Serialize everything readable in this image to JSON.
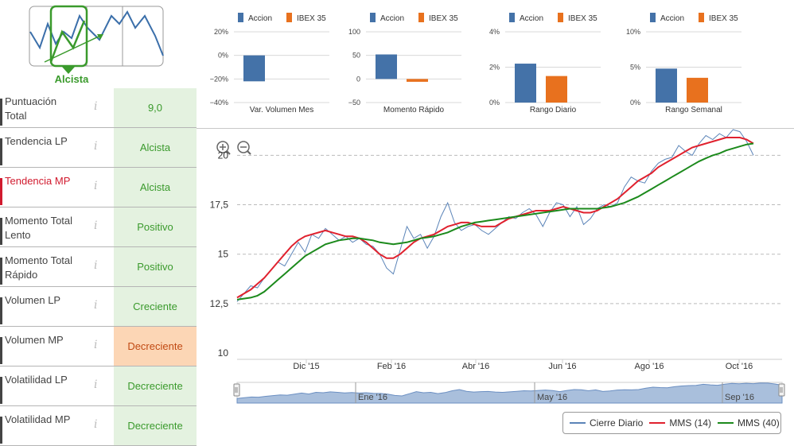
{
  "trend": {
    "label": "Alcista"
  },
  "rows": [
    {
      "label": "Puntuación Total",
      "value": "9,0",
      "tone": "green",
      "active": false
    },
    {
      "label": "Tendencia LP",
      "value": "Alcista",
      "tone": "green",
      "active": false
    },
    {
      "label": "Tendencia MP",
      "value": "Alcista",
      "tone": "green",
      "active": true
    },
    {
      "label": "Momento Total Lento",
      "value": "Positivo",
      "tone": "green",
      "active": false
    },
    {
      "label": "Momento Total Rápido",
      "value": "Positivo",
      "tone": "green",
      "active": false
    },
    {
      "label": "Volumen LP",
      "value": "Creciente",
      "tone": "green",
      "active": false
    },
    {
      "label": "Volumen MP",
      "value": "Decreciente",
      "tone": "orange",
      "active": false
    },
    {
      "label": "Volatilidad LP",
      "value": "Decreciente",
      "tone": "green",
      "active": false
    },
    {
      "label": "Volatilidad MP",
      "value": "Decreciente",
      "tone": "green",
      "active": false
    }
  ],
  "info_glyph": "i",
  "colors": {
    "accion": "#4472a8",
    "ibex": "#e8711e",
    "green_text": "#3a9a2c",
    "red": "#d11a2e",
    "close": "#5b84b8",
    "mms14": "#e0212e",
    "mms40": "#1c8a1c"
  },
  "mini_charts": [
    {
      "type": "bar",
      "legend": [
        "Accion",
        "IBEX 35"
      ],
      "title": "Var. Volumen Mes",
      "yticks": [
        "20%",
        "0%",
        "−20%",
        "−40%"
      ],
      "ylim": [
        -40,
        20
      ],
      "values": [
        -22,
        null
      ]
    },
    {
      "type": "bar",
      "legend": [
        "Accion",
        "IBEX 35"
      ],
      "title": "Momento Rápido",
      "yticks": [
        "100",
        "50",
        "0",
        "−50"
      ],
      "ylim": [
        -50,
        100
      ],
      "values": [
        52,
        -6
      ]
    },
    {
      "type": "bar",
      "legend": [
        "Accion",
        "IBEX 35"
      ],
      "title": "Rango Diario",
      "yticks": [
        "4%",
        "2%",
        "0%"
      ],
      "ylim": [
        0,
        4
      ],
      "values": [
        2.2,
        1.5
      ]
    },
    {
      "type": "bar",
      "legend": [
        "Accion",
        "IBEX 35"
      ],
      "title": "Rango Semanal",
      "yticks": [
        "10%",
        "5%",
        "0%"
      ],
      "ylim": [
        0,
        10
      ],
      "values": [
        4.8,
        3.5
      ]
    }
  ],
  "chart_data": {
    "type": "line",
    "yticks": [
      "20",
      "17,5",
      "15",
      "12,5",
      "10"
    ],
    "ylim": [
      10,
      20.7
    ],
    "xticks": [
      "Dic '15",
      "Feb '16",
      "Abr '16",
      "Jun '16",
      "Ago '16",
      "Oct '16"
    ],
    "navigator_labels": [
      "Ene '16",
      "May '16",
      "Sep '16"
    ],
    "series": [
      {
        "name": "Cierre Diario",
        "color": "#5b84b8",
        "values": [
          12.6,
          13.0,
          13.4,
          13.3,
          13.8,
          14.2,
          14.6,
          14.4,
          15.0,
          15.6,
          15.1,
          16.0,
          15.8,
          16.3,
          16.0,
          15.7,
          15.9,
          15.6,
          15.8,
          15.5,
          15.4,
          15.0,
          14.3,
          14.0,
          15.2,
          16.4,
          15.8,
          16.0,
          15.3,
          15.9,
          16.9,
          17.6,
          16.6,
          16.2,
          16.4,
          16.5,
          16.2,
          16.0,
          16.3,
          16.6,
          16.9,
          16.8,
          17.1,
          17.3,
          17.0,
          16.4,
          17.1,
          17.6,
          17.5,
          16.9,
          17.4,
          16.5,
          16.8,
          17.3,
          17.5,
          17.4,
          17.6,
          18.4,
          18.9,
          18.7,
          18.6,
          19.2,
          19.6,
          19.8,
          19.9,
          20.5,
          20.2,
          20.0,
          20.6,
          21.0,
          20.8,
          21.1,
          20.9,
          21.3,
          21.2,
          20.7,
          20.0
        ]
      },
      {
        "name": "MMS (14)",
        "color": "#e0212e",
        "values": [
          12.8,
          13.0,
          13.2,
          13.5,
          13.8,
          14.2,
          14.6,
          15.0,
          15.4,
          15.7,
          15.9,
          16.0,
          16.1,
          16.2,
          16.1,
          16.0,
          15.9,
          15.9,
          15.8,
          15.6,
          15.3,
          15.0,
          14.8,
          14.8,
          15.0,
          15.3,
          15.6,
          15.8,
          15.9,
          16.0,
          16.2,
          16.4,
          16.5,
          16.6,
          16.6,
          16.5,
          16.4,
          16.4,
          16.4,
          16.6,
          16.8,
          16.9,
          17.0,
          17.1,
          17.2,
          17.2,
          17.2,
          17.3,
          17.4,
          17.3,
          17.2,
          17.1,
          17.1,
          17.2,
          17.4,
          17.6,
          17.8,
          18.1,
          18.4,
          18.7,
          18.9,
          19.1,
          19.4,
          19.6,
          19.8,
          20.0,
          20.2,
          20.4,
          20.5,
          20.6,
          20.7,
          20.8,
          20.9,
          20.9,
          20.9,
          20.8,
          20.6
        ]
      },
      {
        "name": "MMS (40)",
        "color": "#1c8a1c",
        "values": [
          12.7,
          12.75,
          12.8,
          12.9,
          13.1,
          13.4,
          13.7,
          14.0,
          14.3,
          14.6,
          14.9,
          15.1,
          15.3,
          15.5,
          15.6,
          15.7,
          15.75,
          15.8,
          15.8,
          15.75,
          15.7,
          15.6,
          15.55,
          15.5,
          15.55,
          15.6,
          15.7,
          15.8,
          15.85,
          15.9,
          16.0,
          16.1,
          16.25,
          16.4,
          16.5,
          16.6,
          16.65,
          16.7,
          16.75,
          16.8,
          16.85,
          16.9,
          16.95,
          17.0,
          17.05,
          17.1,
          17.15,
          17.2,
          17.25,
          17.3,
          17.3,
          17.3,
          17.3,
          17.3,
          17.35,
          17.4,
          17.5,
          17.6,
          17.75,
          17.9,
          18.1,
          18.3,
          18.5,
          18.7,
          18.9,
          19.1,
          19.3,
          19.5,
          19.7,
          19.85,
          20.0,
          20.1,
          20.25,
          20.35,
          20.45,
          20.55,
          20.6
        ]
      }
    ]
  }
}
